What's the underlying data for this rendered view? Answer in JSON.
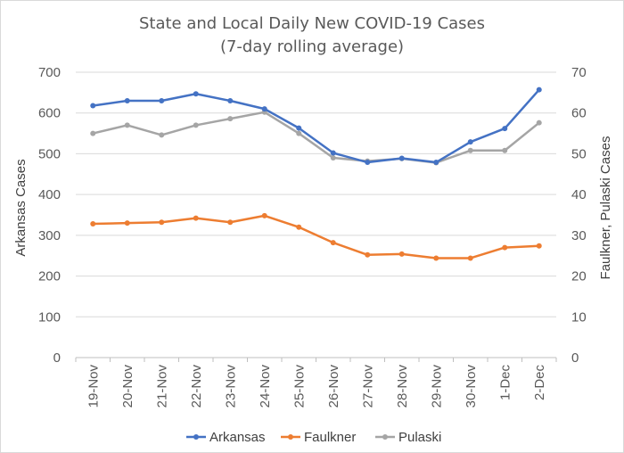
{
  "chart_data": {
    "type": "line",
    "title": "State and Local Daily New COVID-19 Cases",
    "subtitle": "(7-day rolling average)",
    "categories": [
      "19-Nov",
      "20-Nov",
      "21-Nov",
      "22-Nov",
      "23-Nov",
      "24-Nov",
      "25-Nov",
      "26-Nov",
      "27-Nov",
      "28-Nov",
      "29-Nov",
      "30-Nov",
      "1-Dec",
      "2-Dec"
    ],
    "ylabel": "Arkansas Cases",
    "y2label": "Faulkner, Pulaski Cases",
    "ylim": [
      0,
      700
    ],
    "y2lim": [
      0,
      70
    ],
    "yticks": [
      0,
      100,
      200,
      300,
      400,
      500,
      600,
      700
    ],
    "y2ticks": [
      0,
      10,
      20,
      30,
      40,
      50,
      60,
      70
    ],
    "grid": true,
    "legend_position": "bottom",
    "series": [
      {
        "name": "Arkansas",
        "axis": "left",
        "color": "#4472C4",
        "values": [
          618,
          630,
          630,
          647,
          630,
          610,
          563,
          502,
          479,
          489,
          479,
          529,
          562,
          657
        ]
      },
      {
        "name": "Faulkner",
        "axis": "right",
        "color": "#ED7D31",
        "values": [
          32.8,
          33.0,
          33.2,
          34.2,
          33.2,
          34.8,
          32.0,
          28.2,
          25.2,
          25.4,
          24.4,
          24.4,
          27.0,
          27.4
        ]
      },
      {
        "name": "Pulaski",
        "axis": "right",
        "color": "#A5A5A5",
        "values": [
          55.0,
          57.0,
          54.6,
          57.0,
          58.6,
          60.2,
          55.0,
          49.0,
          48.2,
          48.8,
          47.8,
          50.8,
          50.8,
          57.6
        ]
      }
    ]
  }
}
